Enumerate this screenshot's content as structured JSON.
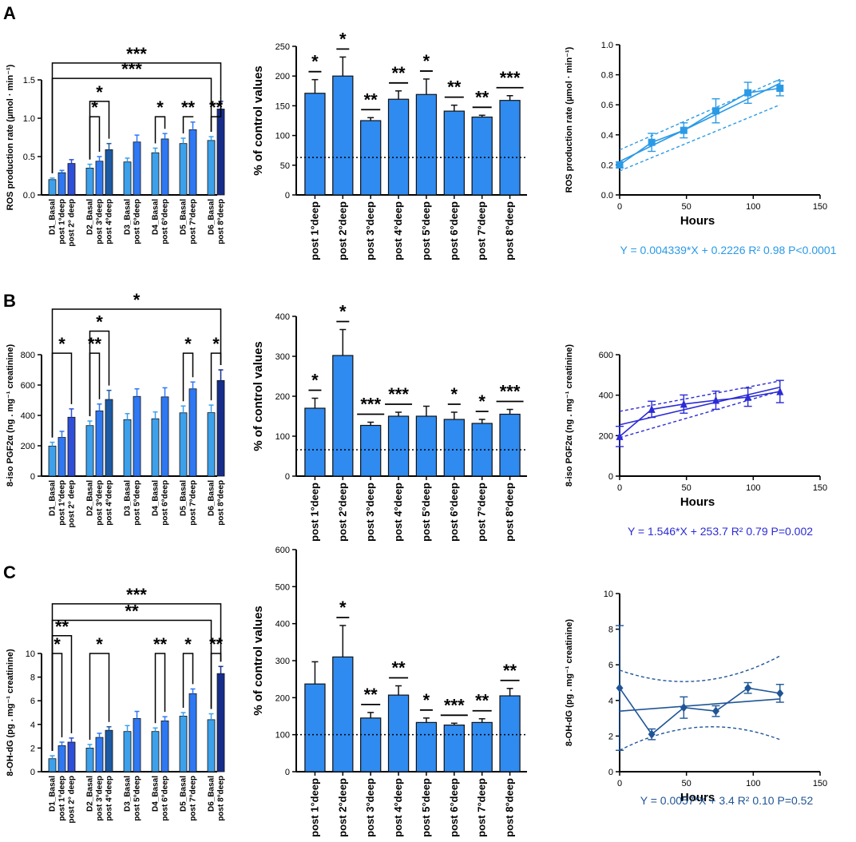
{
  "panels": [
    "A",
    "B",
    "C"
  ],
  "colors": {
    "d_basal": "#3da0ea",
    "post_first": "#2f78f2",
    "post_second": "#2f4fd8",
    "post_8": "#162e8a",
    "post_4": "#1d5aa2",
    "pct_bar": "#2f8bf0",
    "line_a": "#2a9ae6",
    "line_b": "#2b2bd6",
    "line_c": "#1f5596"
  },
  "chart_data": [
    {
      "id": "A-left",
      "type": "bar",
      "panel": "A",
      "ylabel": "ROS production rate (µmol · min⁻¹)",
      "ylim": [
        0,
        1.5
      ],
      "yticks": [
        0,
        0.5,
        1.0,
        1.5
      ],
      "ytick_labels": [
        "0.0",
        "0.5",
        "1.0",
        "1.5"
      ],
      "categories": [
        "D1_Basal",
        "post 1°deep",
        "post 2° deep",
        "D2_Basal",
        "post 3°deep",
        "post 4°deep",
        "D3_Basal",
        "post 5°deep",
        "D4_Basal",
        "post 6°deep",
        "D5_Basal",
        "post 7°deep",
        "D6_Basal",
        "post 8°deep"
      ],
      "groups": [
        3,
        3,
        2,
        2,
        2,
        2
      ],
      "values": [
        0.2,
        0.29,
        0.41,
        0.35,
        0.44,
        0.59,
        0.43,
        0.69,
        0.55,
        0.73,
        0.67,
        0.85,
        0.71,
        1.12
      ],
      "errors": [
        0.02,
        0.03,
        0.05,
        0.05,
        0.06,
        0.08,
        0.05,
        0.09,
        0.06,
        0.07,
        0.07,
        0.1,
        0.05,
        0.1
      ],
      "brackets": [
        {
          "from": 0,
          "to": 13,
          "label": "***",
          "level": 1.72
        },
        {
          "from": 0,
          "to": 12,
          "label": "***",
          "level": 1.52
        },
        {
          "from": 3,
          "to": 5,
          "label": "*",
          "level": 1.22
        },
        {
          "from": 3,
          "to": 4,
          "label": "*",
          "level": 1.02
        },
        {
          "from": 8,
          "to": 9,
          "label": "*",
          "level": 1.02
        },
        {
          "from": 10,
          "to": 11,
          "label": "**",
          "level": 1.02
        },
        {
          "from": 12,
          "to": 13,
          "label": "**",
          "level": 1.02
        }
      ]
    },
    {
      "id": "A-mid",
      "type": "bar",
      "panel": "A",
      "ylabel": "% of control values",
      "ylim": [
        0,
        250
      ],
      "yticks": [
        0,
        50,
        100,
        150,
        200,
        250
      ],
      "ytick_labels": [
        "0",
        "50",
        "100",
        "150",
        "200",
        "250"
      ],
      "categories": [
        "post 1°deep",
        "post 2°deep",
        "post 3°deep",
        "post 4°deep",
        "post 5°deep",
        "post 6°deep",
        "post 7°deep",
        "post 8°deep"
      ],
      "values": [
        171,
        200,
        125,
        161,
        169,
        141,
        131,
        159
      ],
      "errors": [
        23,
        32,
        5,
        14,
        26,
        10,
        3,
        8
      ],
      "stars": [
        "*",
        "*",
        "**",
        "**",
        "*",
        "**",
        "**",
        "***"
      ],
      "reference_line": 63
    },
    {
      "id": "A-right",
      "type": "line",
      "panel": "A",
      "xlabel": "Hours",
      "ylabel": "ROS production rate (µmol · min⁻¹)",
      "xlim": [
        0,
        150
      ],
      "ylim": [
        0,
        1.0
      ],
      "xticks": [
        0,
        50,
        100,
        150
      ],
      "xtick_labels": [
        "0",
        "50",
        "100",
        "150"
      ],
      "yticks": [
        0,
        0.2,
        0.4,
        0.6,
        0.8,
        1.0
      ],
      "ytick_labels": [
        "0.0",
        "0.2",
        "0.4",
        "0.6",
        "0.8",
        "1.0"
      ],
      "x": [
        0,
        24,
        48,
        72,
        96,
        120
      ],
      "y": [
        0.2,
        0.35,
        0.43,
        0.56,
        0.68,
        0.71
      ],
      "errors": [
        0.02,
        0.06,
        0.05,
        0.08,
        0.07,
        0.05
      ],
      "marker": "square",
      "fit": {
        "slope": 0.004339,
        "intercept": 0.2226
      },
      "ci_lower": [
        0.16,
        0.6
      ],
      "ci_upper": [
        0.3,
        0.77
      ],
      "equation": "Y = 0.004339*X + 0.2226 R² 0.98 P<0.0001"
    },
    {
      "id": "B-left",
      "type": "bar",
      "panel": "B",
      "ylabel": "8-iso PGF2α (ng . mg⁻¹ creatinine)",
      "ylim": [
        0,
        800
      ],
      "yticks": [
        0,
        200,
        400,
        600,
        800
      ],
      "ytick_labels": [
        "0",
        "200",
        "400",
        "600",
        "800"
      ],
      "categories": [
        "D1_Basal",
        "post 1°deep",
        "post 2° deep",
        "D2_Basal",
        "post 3°deep",
        "post 4°deep",
        "D3_Basal",
        "post 5°deep",
        "D4_Basal",
        "post 6°deep",
        "D5_Basal",
        "post 7°deep",
        "D6_Basal",
        "post 8°deep"
      ],
      "groups": [
        3,
        3,
        2,
        2,
        2,
        2
      ],
      "values": [
        198,
        255,
        388,
        333,
        430,
        505,
        372,
        525,
        378,
        522,
        417,
        575,
        418,
        630
      ],
      "errors": [
        25,
        40,
        55,
        30,
        45,
        60,
        40,
        50,
        45,
        60,
        45,
        45,
        50,
        70
      ],
      "brackets": [
        {
          "from": 0,
          "to": 13,
          "label": "*",
          "level": 1100
        },
        {
          "from": 3,
          "to": 5,
          "label": "*",
          "level": 955
        },
        {
          "from": 0,
          "to": 2,
          "label": "*",
          "level": 810
        },
        {
          "from": 3,
          "to": 4,
          "label": "**",
          "level": 810
        },
        {
          "from": 10,
          "to": 11,
          "label": "*",
          "level": 810
        },
        {
          "from": 12,
          "to": 13,
          "label": "*",
          "level": 810
        }
      ]
    },
    {
      "id": "B-mid",
      "type": "bar",
      "panel": "B",
      "ylabel": "% of control values",
      "ylim": [
        0,
        400
      ],
      "yticks": [
        0,
        100,
        200,
        300,
        400
      ],
      "ytick_labels": [
        "0",
        "100",
        "200",
        "300",
        "400"
      ],
      "categories": [
        "post 1°deep",
        "post 2°deep",
        "post 3°deep",
        "post 4°deep",
        "post 5°deep",
        "post 6°deep",
        "post 7°deep",
        "post 8°deep"
      ],
      "values": [
        170,
        302,
        127,
        150,
        150,
        142,
        132,
        155
      ],
      "errors": [
        25,
        65,
        8,
        10,
        25,
        18,
        10,
        12
      ],
      "stars": [
        "*",
        "*",
        "***",
        "***",
        "",
        "*",
        "*",
        "***"
      ],
      "reference_line": 66
    },
    {
      "id": "B-right",
      "type": "line",
      "panel": "B",
      "xlabel": "Hours",
      "ylabel": "8-iso PGF2α (ng . mg⁻¹ creatinine)",
      "xlim": [
        0,
        150
      ],
      "ylim": [
        0,
        600
      ],
      "xticks": [
        0,
        50,
        100,
        150
      ],
      "xtick_labels": [
        "0",
        "50",
        "100",
        "150"
      ],
      "yticks": [
        0,
        200,
        400,
        600
      ],
      "ytick_labels": [
        "0",
        "200",
        "400",
        "600"
      ],
      "x": [
        0,
        24,
        48,
        72,
        96,
        120
      ],
      "y": [
        196,
        330,
        356,
        375,
        390,
        418
      ],
      "errors": [
        50,
        40,
        45,
        45,
        45,
        55
      ],
      "marker": "triangle",
      "fit": {
        "slope": 1.546,
        "intercept": 253.7
      },
      "ci_lower": [
        190,
        420
      ],
      "ci_upper": [
        320,
        470
      ],
      "equation": "Y = 1.546*X + 253.7 R² 0.79 P=0.002"
    },
    {
      "id": "C-left",
      "type": "bar",
      "panel": "C",
      "ylabel": "8-OH-dG (pg . mg⁻¹ creatinine)",
      "ylim": [
        0,
        10
      ],
      "yticks": [
        0,
        2,
        4,
        6,
        8,
        10
      ],
      "ytick_labels": [
        "0",
        "2",
        "4",
        "6",
        "8",
        "10"
      ],
      "categories": [
        "D1_Basal",
        "post 1°deep",
        "post 2° deep",
        "D2_Basal",
        "post 3°deep",
        "post 4°deep",
        "D3_Basal",
        "post 5°deep",
        "D4_Basal",
        "post 6°deep",
        "D5_Basal",
        "post 7°deep",
        "D6_Basal",
        "post 8°deep"
      ],
      "groups": [
        3,
        3,
        2,
        2,
        2,
        2
      ],
      "values": [
        1.1,
        2.2,
        2.5,
        2.0,
        2.9,
        3.5,
        3.4,
        4.5,
        3.4,
        4.3,
        4.7,
        6.6,
        4.4,
        8.3
      ],
      "errors": [
        0.25,
        0.3,
        0.35,
        0.3,
        0.35,
        0.3,
        0.5,
        0.6,
        0.3,
        0.35,
        0.3,
        0.4,
        0.5,
        0.6
      ],
      "brackets": [
        {
          "from": 0,
          "to": 13,
          "label": "***",
          "level": 14.2
        },
        {
          "from": 0,
          "to": 12,
          "label": "**",
          "level": 12.8
        },
        {
          "from": 0,
          "to": 2,
          "label": "**",
          "level": 11.5
        },
        {
          "from": 0,
          "to": 1,
          "label": "*",
          "level": 10.0
        },
        {
          "from": 3,
          "to": 5,
          "label": "*",
          "level": 10.0
        },
        {
          "from": 8,
          "to": 9,
          "label": "**",
          "level": 10.0
        },
        {
          "from": 10,
          "to": 11,
          "label": "*",
          "level": 10.0
        },
        {
          "from": 12,
          "to": 13,
          "label": "**",
          "level": 10.0
        }
      ]
    },
    {
      "id": "C-mid",
      "type": "bar",
      "panel": "C",
      "ylabel": "% of control values",
      "ylim": [
        0,
        600
      ],
      "yticks": [
        0,
        100,
        200,
        300,
        400,
        500,
        600
      ],
      "ytick_labels": [
        "0",
        "100",
        "200",
        "300",
        "400",
        "500",
        "600"
      ],
      "categories": [
        "post 1°deep",
        "post 2°deep",
        "post 3°deep",
        "post 4°deep",
        "post 5°deep",
        "post 6°deep",
        "post 7°deep",
        "post 8°deep"
      ],
      "values": [
        237,
        310,
        145,
        207,
        133,
        126,
        133,
        205
      ],
      "errors": [
        60,
        85,
        15,
        25,
        12,
        5,
        10,
        20
      ],
      "stars": [
        "",
        "*",
        "**",
        "**",
        "*",
        "***",
        "**",
        "**"
      ],
      "reference_line": 100
    },
    {
      "id": "C-right",
      "type": "line",
      "panel": "C",
      "xlabel": "Hours",
      "ylabel": "8-OH-dG (pg . mg⁻¹ creatinine)",
      "xlim": [
        0,
        150
      ],
      "ylim": [
        0,
        10
      ],
      "xticks": [
        0,
        50,
        100,
        150
      ],
      "xtick_labels": [
        "0",
        "50",
        "100",
        "150"
      ],
      "yticks": [
        0,
        2,
        4,
        6,
        8,
        10
      ],
      "ytick_labels": [
        "0",
        "2",
        "4",
        "6",
        "8",
        "10"
      ],
      "x": [
        0,
        24,
        48,
        72,
        96,
        120
      ],
      "y": [
        4.7,
        2.1,
        3.6,
        3.4,
        4.7,
        4.4
      ],
      "errors": [
        3.5,
        0.3,
        0.6,
        0.3,
        0.3,
        0.5
      ],
      "marker": "diamond",
      "fit": {
        "slope": 0.0057,
        "intercept": 3.4
      },
      "ci_lower": [
        1.2,
        2.5,
        1.8
      ],
      "ci_upper": [
        5.7,
        5.1,
        6.5
      ],
      "equation": "Y = 0.0057*X + 3.4 R² 0.10 P=0.52"
    }
  ]
}
